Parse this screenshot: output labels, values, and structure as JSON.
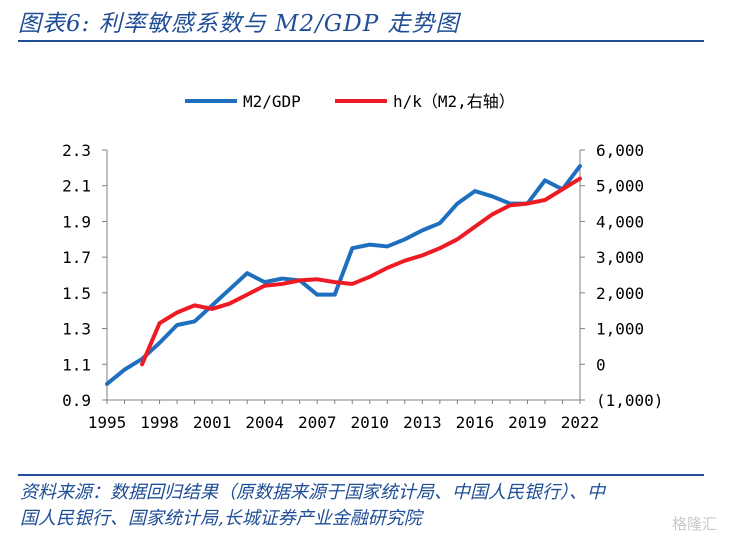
{
  "header": {
    "title": "图表6:  利率敏感系数与 M2/GDP 走势图"
  },
  "footer": {
    "source_line1": "资料来源：数据回归结果（原数据来源于国家统计局、中国人民银行）、中",
    "source_line2": "国人民银行、国家统计局,长城证券产业金融研究院",
    "watermark": "格隆汇"
  },
  "chart_data": {
    "type": "line",
    "x": [
      1995,
      1996,
      1997,
      1998,
      1999,
      2000,
      2001,
      2002,
      2003,
      2004,
      2005,
      2006,
      2007,
      2008,
      2009,
      2010,
      2011,
      2012,
      2013,
      2014,
      2015,
      2016,
      2017,
      2018,
      2019,
      2020,
      2021,
      2022
    ],
    "x_tick_labels": [
      "1995",
      "1998",
      "2001",
      "2004",
      "2007",
      "2010",
      "2013",
      "2016",
      "2019",
      "2022"
    ],
    "series": [
      {
        "name": "M2/GDP",
        "axis": "left",
        "color": "#1f6fbf",
        "values": [
          0.99,
          1.07,
          1.13,
          1.22,
          1.32,
          1.34,
          1.43,
          1.52,
          1.61,
          1.56,
          1.58,
          1.57,
          1.49,
          1.49,
          1.75,
          1.77,
          1.76,
          1.8,
          1.85,
          1.89,
          2.0,
          2.07,
          2.04,
          2.0,
          2.0,
          2.13,
          2.08,
          2.21
        ]
      },
      {
        "name": "h/k（M2,右轴）",
        "axis": "right",
        "color": "#ee1b24",
        "values": [
          null,
          null,
          0,
          1150,
          1450,
          1650,
          1550,
          1700,
          1950,
          2200,
          2250,
          2350,
          2380,
          2300,
          2250,
          2450,
          2700,
          2900,
          3050,
          3250,
          3500,
          3850,
          4200,
          4450,
          4500,
          4600,
          4900,
          5200
        ]
      }
    ],
    "left_axis": {
      "ylim": [
        0.9,
        2.3
      ],
      "tick_labels": [
        "2.3",
        "2.1",
        "1.9",
        "1.7",
        "1.5",
        "1.3",
        "1.1",
        "0.9"
      ],
      "tick_values": [
        2.3,
        2.1,
        1.9,
        1.7,
        1.5,
        1.3,
        1.1,
        0.9
      ]
    },
    "right_axis": {
      "ylim": [
        -1000,
        6000
      ],
      "tick_labels": [
        "6,000",
        "5,000",
        "4,000",
        "3,000",
        "2,000",
        "1,000",
        "0",
        "(1,000)"
      ],
      "tick_values": [
        6000,
        5000,
        4000,
        3000,
        2000,
        1000,
        0,
        -1000
      ],
      "negative_color": "#ee1b24"
    },
    "legend": {
      "position": "top-center",
      "entries": [
        "M2/GDP",
        "h/k（M2,右轴）"
      ]
    },
    "grid": false
  }
}
